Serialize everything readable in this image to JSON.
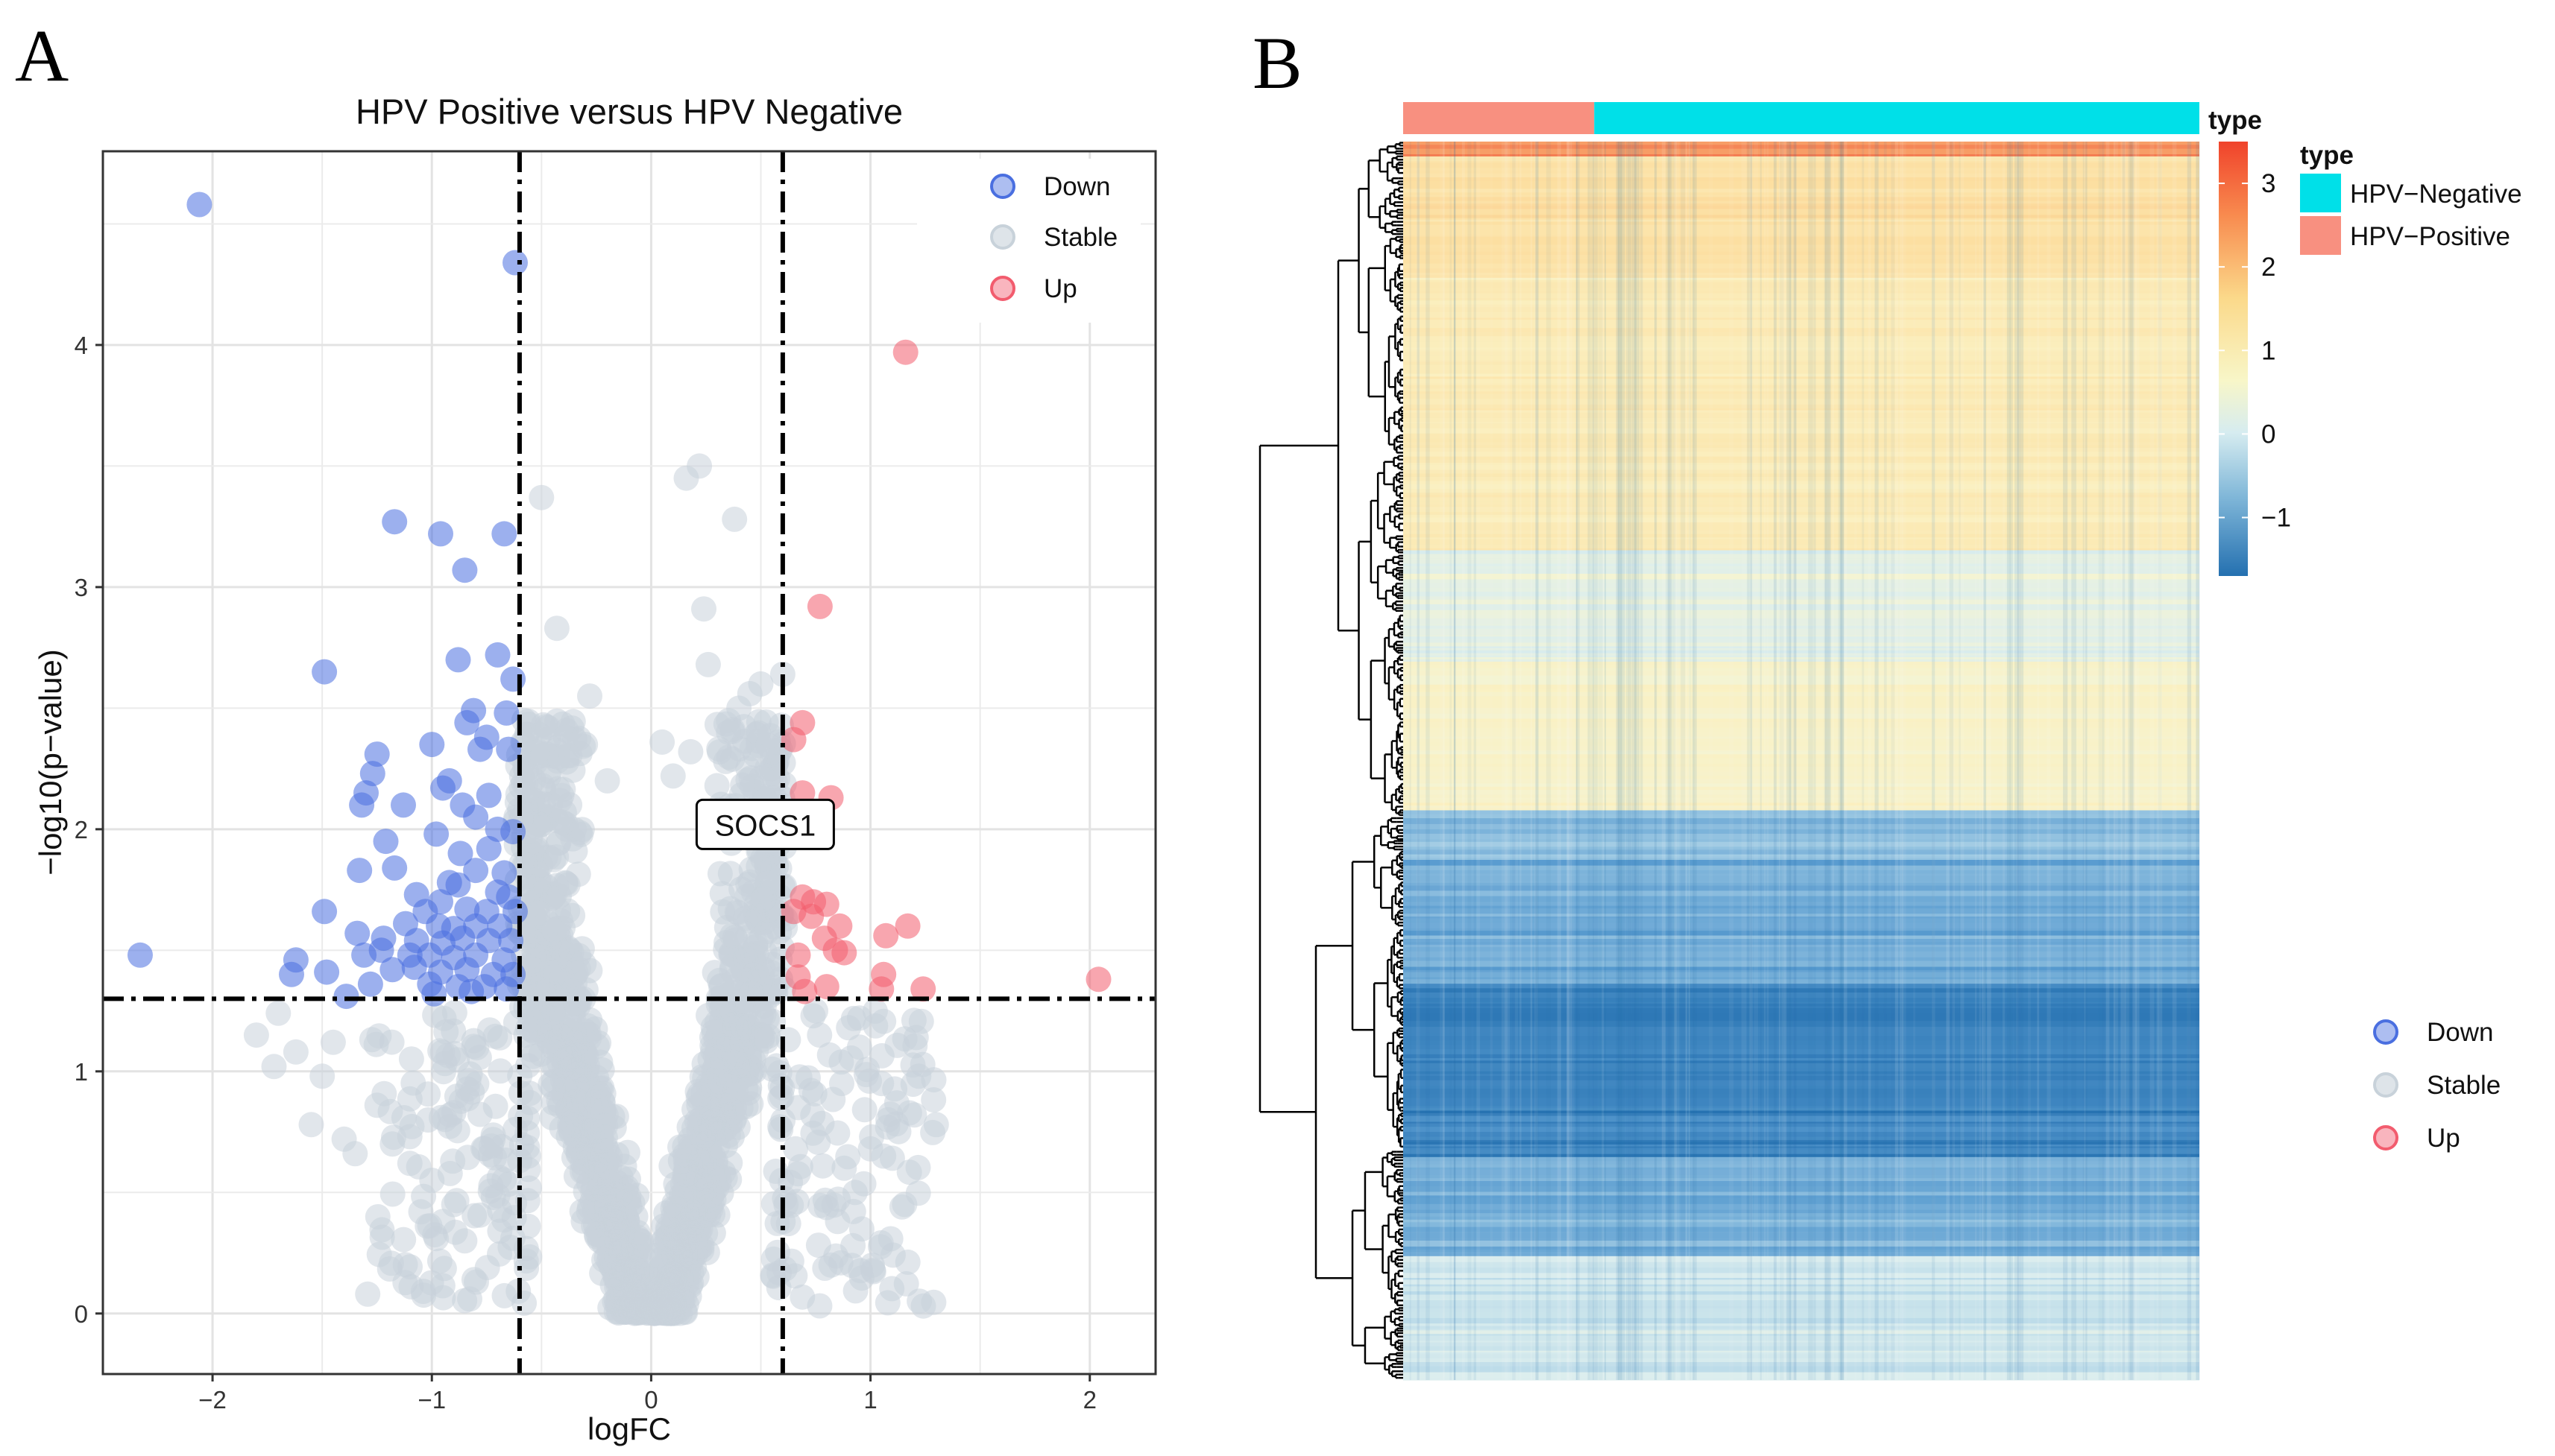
{
  "panel_a_letter": "A",
  "panel_b_letter": "B",
  "chart_data": [
    {
      "type": "scatter",
      "title": "HPV Positive versus HPV Negative",
      "xlabel": "logFC",
      "ylabel": "−log10(p−value)",
      "xlim": [
        -2.5,
        2.3
      ],
      "ylim": [
        -0.25,
        4.8
      ],
      "x_ticks": [
        "−2",
        "−1",
        "0",
        "1",
        "2"
      ],
      "x_tick_values": [
        -2,
        -1,
        0,
        1,
        2
      ],
      "y_ticks": [
        "0",
        "1",
        "2",
        "3",
        "4"
      ],
      "y_tick_values": [
        0,
        1,
        2,
        3,
        4
      ],
      "grid": true,
      "legend_position": "top-right",
      "thresholds": {
        "logfc_low": -0.6,
        "logfc_high": 0.6,
        "pvalue_line": 1.3
      },
      "label": {
        "text": "SOCS1",
        "x": 0.52,
        "y": 1.98
      },
      "colors": {
        "Down": "#4a6fe0",
        "Stable": "#c8d2da",
        "Up": "#f25c6e"
      },
      "series": [
        {
          "name": "Down",
          "points": [
            [
              -2.06,
              4.58
            ],
            [
              -0.62,
              4.34
            ],
            [
              -1.17,
              3.27
            ],
            [
              -0.96,
              3.22
            ],
            [
              -0.67,
              3.22
            ],
            [
              -0.85,
              3.07
            ],
            [
              -1.49,
              2.65
            ],
            [
              -0.88,
              2.7
            ],
            [
              -0.7,
              2.72
            ],
            [
              -0.63,
              2.62
            ],
            [
              -0.81,
              2.49
            ],
            [
              -0.66,
              2.48
            ],
            [
              -0.84,
              2.44
            ],
            [
              -0.75,
              2.38
            ],
            [
              -1.25,
              2.31
            ],
            [
              -1.0,
              2.35
            ],
            [
              -0.78,
              2.33
            ],
            [
              -0.65,
              2.33
            ],
            [
              -1.27,
              2.23
            ],
            [
              -0.92,
              2.2
            ],
            [
              -1.3,
              2.15
            ],
            [
              -1.13,
              2.1
            ],
            [
              -0.95,
              2.17
            ],
            [
              -0.86,
              2.1
            ],
            [
              -0.74,
              2.14
            ],
            [
              -1.32,
              2.1
            ],
            [
              -0.8,
              2.05
            ],
            [
              -0.7,
              2.0
            ],
            [
              -0.63,
              1.99
            ],
            [
              -1.21,
              1.95
            ],
            [
              -0.98,
              1.98
            ],
            [
              -0.87,
              1.9
            ],
            [
              -0.74,
              1.92
            ],
            [
              -1.17,
              1.84
            ],
            [
              -1.33,
              1.83
            ],
            [
              -0.92,
              1.78
            ],
            [
              -0.8,
              1.83
            ],
            [
              -0.67,
              1.82
            ],
            [
              -1.07,
              1.73
            ],
            [
              -0.96,
              1.7
            ],
            [
              -0.88,
              1.77
            ],
            [
              -0.7,
              1.74
            ],
            [
              -0.65,
              1.72
            ],
            [
              -1.49,
              1.66
            ],
            [
              -1.03,
              1.66
            ],
            [
              -0.84,
              1.67
            ],
            [
              -0.75,
              1.66
            ],
            [
              -0.62,
              1.66
            ],
            [
              -1.12,
              1.61
            ],
            [
              -0.97,
              1.6
            ],
            [
              -0.9,
              1.59
            ],
            [
              -0.8,
              1.6
            ],
            [
              -0.69,
              1.6
            ],
            [
              -1.34,
              1.57
            ],
            [
              -1.22,
              1.55
            ],
            [
              -1.07,
              1.54
            ],
            [
              -0.95,
              1.53
            ],
            [
              -0.86,
              1.55
            ],
            [
              -0.74,
              1.54
            ],
            [
              -0.64,
              1.54
            ],
            [
              -2.33,
              1.48
            ],
            [
              -1.62,
              1.46
            ],
            [
              -1.31,
              1.48
            ],
            [
              -1.23,
              1.5
            ],
            [
              -1.1,
              1.48
            ],
            [
              -1.01,
              1.48
            ],
            [
              -0.9,
              1.47
            ],
            [
              -0.8,
              1.48
            ],
            [
              -0.67,
              1.46
            ],
            [
              -1.64,
              1.4
            ],
            [
              -1.48,
              1.41
            ],
            [
              -1.18,
              1.42
            ],
            [
              -1.08,
              1.43
            ],
            [
              -0.96,
              1.41
            ],
            [
              -0.84,
              1.42
            ],
            [
              -0.72,
              1.4
            ],
            [
              -0.63,
              1.4
            ],
            [
              -1.28,
              1.36
            ],
            [
              -1.01,
              1.36
            ],
            [
              -0.88,
              1.35
            ],
            [
              -0.76,
              1.35
            ],
            [
              -0.66,
              1.34
            ],
            [
              -1.39,
              1.31
            ],
            [
              -0.99,
              1.32
            ],
            [
              -0.82,
              1.33
            ]
          ]
        },
        {
          "name": "Up",
          "points": [
            [
              1.16,
              3.97
            ],
            [
              0.77,
              2.92
            ],
            [
              0.69,
              2.44
            ],
            [
              0.65,
              2.37
            ],
            [
              0.69,
              2.15
            ],
            [
              0.82,
              2.13
            ],
            [
              0.66,
              2.03
            ],
            [
              0.69,
              1.72
            ],
            [
              0.74,
              1.7
            ],
            [
              0.8,
              1.69
            ],
            [
              0.65,
              1.66
            ],
            [
              0.73,
              1.64
            ],
            [
              0.86,
              1.6
            ],
            [
              0.79,
              1.55
            ],
            [
              0.84,
              1.5
            ],
            [
              0.88,
              1.49
            ],
            [
              0.67,
              1.48
            ],
            [
              1.07,
              1.56
            ],
            [
              1.17,
              1.6
            ],
            [
              1.06,
              1.4
            ],
            [
              0.67,
              1.39
            ],
            [
              0.8,
              1.35
            ],
            [
              1.24,
              1.34
            ],
            [
              2.04,
              1.38
            ],
            [
              1.05,
              1.34
            ],
            [
              0.7,
              1.33
            ]
          ]
        },
        {
          "name": "Stable",
          "points": [
            [
              -0.5,
              3.37
            ],
            [
              0.16,
              3.45
            ],
            [
              0.22,
              3.5
            ],
            [
              0.38,
              3.28
            ],
            [
              -0.43,
              2.83
            ],
            [
              0.24,
              2.91
            ],
            [
              0.26,
              2.68
            ],
            [
              0.45,
              2.56
            ],
            [
              0.5,
              2.6
            ],
            [
              0.6,
              2.64
            ],
            [
              -0.28,
              2.55
            ],
            [
              -0.47,
              2.42
            ],
            [
              -0.39,
              2.38
            ],
            [
              0.4,
              2.5
            ],
            [
              0.05,
              2.36
            ],
            [
              0.18,
              2.32
            ],
            [
              0.34,
              2.28
            ],
            [
              0.58,
              2.36
            ],
            [
              -1.7,
              1.24
            ],
            [
              -1.8,
              1.15
            ],
            [
              -1.62,
              1.08
            ],
            [
              -1.72,
              1.02
            ],
            [
              -1.45,
              1.12
            ],
            [
              -1.5,
              0.98
            ],
            [
              -1.55,
              0.78
            ],
            [
              -1.4,
              0.72
            ],
            [
              -1.35,
              0.66
            ],
            [
              -1.25,
              0.86
            ],
            [
              -1.18,
              0.7
            ],
            [
              -1.1,
              0.62
            ],
            [
              0.9,
              1.18
            ],
            [
              0.95,
              1.1
            ],
            [
              1.05,
              0.95
            ],
            [
              1.12,
              0.87
            ],
            [
              1.2,
              0.82
            ],
            [
              1.22,
              0.98
            ],
            [
              1.08,
              0.8
            ],
            [
              1.3,
              0.78
            ],
            [
              1.0,
              0.68
            ],
            [
              1.06,
              0.65
            ],
            [
              0.88,
              0.6
            ],
            [
              0.93,
              0.5
            ],
            [
              0.85,
              0.38
            ],
            [
              0.92,
              0.28
            ],
            [
              0.82,
              0.2
            ],
            [
              -0.9,
              0.45
            ],
            [
              -0.95,
              0.38
            ],
            [
              -0.85,
              0.3
            ],
            [
              -1.05,
              0.42
            ],
            [
              -1.0,
              0.55
            ],
            [
              0.75,
              1.25
            ],
            [
              0.95,
              1.22
            ],
            [
              0.1,
              2.22
            ],
            [
              0.3,
              2.18
            ],
            [
              -0.3,
              2.35
            ],
            [
              -0.2,
              2.2
            ]
          ]
        }
      ]
    },
    {
      "type": "heatmap",
      "annotation_title": "type",
      "colorbar_ticks": [
        "3",
        "2",
        "1",
        "0",
        "−1"
      ],
      "colorbar_values": [
        3,
        2,
        1,
        0,
        -1
      ],
      "value_range": [
        -1.7,
        3.5
      ],
      "groups": [
        {
          "name": "HPV−Negative",
          "color": "#00e0e8",
          "fraction": 0.76
        },
        {
          "name": "HPV−Positive",
          "color": "#f89080",
          "fraction": 0.24
        }
      ],
      "row_blocks": [
        {
          "from": 0.0,
          "to": 0.012,
          "value": 2.9
        },
        {
          "from": 0.012,
          "to": 0.11,
          "value": 1.9
        },
        {
          "from": 0.11,
          "to": 0.33,
          "value": 1.5
        },
        {
          "from": 0.33,
          "to": 0.42,
          "value": 0.5
        },
        {
          "from": 0.42,
          "to": 0.54,
          "value": 1.05
        },
        {
          "from": 0.54,
          "to": 0.58,
          "value": -0.5
        },
        {
          "from": 0.58,
          "to": 0.68,
          "value": -0.8
        },
        {
          "from": 0.68,
          "to": 0.82,
          "value": -1.4
        },
        {
          "from": 0.82,
          "to": 0.9,
          "value": -0.75
        },
        {
          "from": 0.9,
          "to": 1.0,
          "value": 0.15
        }
      ],
      "legend": [
        "Down",
        "Stable",
        "Up"
      ]
    }
  ]
}
